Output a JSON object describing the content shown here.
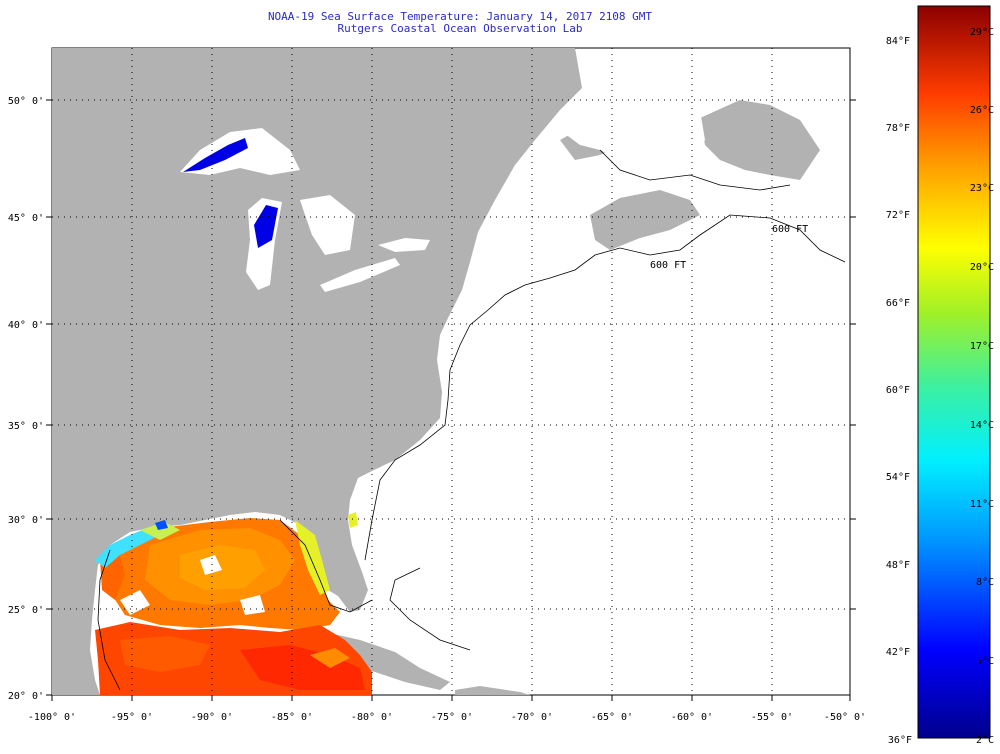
{
  "title": {
    "line1": "NOAA-19 Sea Surface Temperature:  January 14, 2017 2108 GMT",
    "line2": "Rutgers Coastal Ocean Observation Lab"
  },
  "lon_labels": [
    "-100° 0'",
    "-95° 0'",
    "-90° 0'",
    "-85° 0'",
    "-80° 0'",
    "-75° 0'",
    "-70° 0'",
    "-65° 0'",
    "-60° 0'",
    "-55° 0'",
    "-50° 0'"
  ],
  "lat_labels": [
    "50° 0'",
    "45° 0'",
    "40° 0'",
    "35° 0'",
    "30° 0'",
    "25° 0'",
    "20° 0'"
  ],
  "isobath_label": "600 FT",
  "colorbar": {
    "fahrenheit": [
      "84°F",
      "78°F",
      "72°F",
      "66°F",
      "60°F",
      "54°F",
      "48°F",
      "42°F",
      "36°F"
    ],
    "celsius": [
      "29°C",
      "26°C",
      "23°C",
      "20°C",
      "17°C",
      "14°C",
      "11°C",
      "8°C",
      "5°C",
      "2°C"
    ]
  },
  "colors": {
    "land": "#b2b2b2",
    "no_data": "#ffffff",
    "title_text": "#2a2ac8",
    "cold": "#00008c",
    "warm": "#8c0000"
  }
}
